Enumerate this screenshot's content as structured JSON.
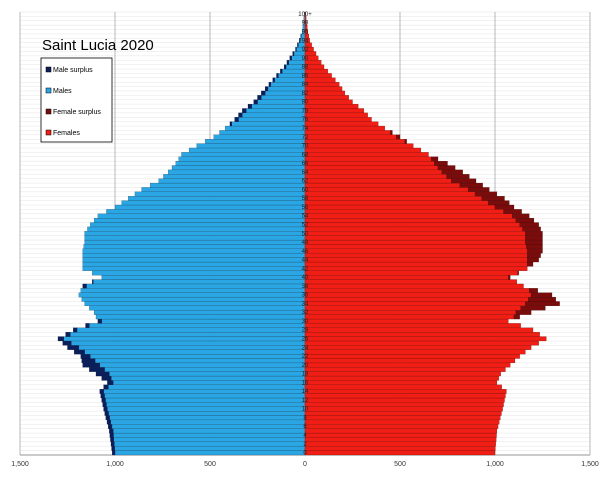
{
  "chart_data": {
    "type": "bar",
    "orientation": "horizontal",
    "title": "Saint Lucia 2020",
    "x_tick_labels": [
      "1,500",
      "1,000",
      "500",
      "0",
      "500",
      "1,000",
      "1,500"
    ],
    "x_tick_values": [
      -1500,
      -1000,
      -500,
      0,
      500,
      1000,
      1500
    ],
    "xlim": [
      -1500,
      1500
    ],
    "age_tick_labels": [
      "100+",
      "98",
      "96",
      "94",
      "92",
      "90",
      "88",
      "86",
      "84",
      "82",
      "80",
      "78",
      "76",
      "74",
      "72",
      "70",
      "68",
      "66",
      "64",
      "62",
      "60",
      "58",
      "56",
      "54",
      "52",
      "50",
      "48",
      "46",
      "44",
      "42",
      "40",
      "38",
      "36",
      "34",
      "32",
      "30",
      "28",
      "26",
      "24",
      "22",
      "20",
      "18",
      "16",
      "14",
      "12",
      "10",
      "8",
      "6",
      "4",
      "2",
      "0"
    ],
    "legend": {
      "placement": "top-left",
      "entries": [
        {
          "name": "Male surplus",
          "color": "#0b1f5c"
        },
        {
          "name": "Males",
          "color": "#2aa6e4"
        },
        {
          "name": "Female surplus",
          "color": "#7a0c0c"
        },
        {
          "name": "Females",
          "color": "#f01e14"
        }
      ]
    },
    "grid": true,
    "series_anchor_ages": [
      0,
      5,
      10,
      14,
      16,
      18,
      20,
      22,
      24,
      26,
      28,
      30,
      32,
      34,
      36,
      38,
      40,
      42,
      44,
      46,
      48,
      50,
      52,
      54,
      56,
      58,
      60,
      62,
      64,
      66,
      68,
      70,
      72,
      74,
      76,
      78,
      80,
      82,
      84,
      86,
      88,
      90,
      92,
      94,
      96,
      98,
      100
    ],
    "males_anchor": [
      1015,
      1030,
      1060,
      1080,
      1040,
      1100,
      1170,
      1180,
      1250,
      1300,
      1220,
      1090,
      1110,
      1160,
      1190,
      1170,
      1070,
      1170,
      1170,
      1170,
      1160,
      1160,
      1130,
      1090,
      1000,
      930,
      860,
      770,
      720,
      680,
      650,
      570,
      480,
      420,
      370,
      330,
      270,
      230,
      190,
      150,
      110,
      80,
      50,
      30,
      15,
      8,
      4
    ],
    "females_anchor": [
      1000,
      1010,
      1040,
      1060,
      1010,
      1030,
      1080,
      1130,
      1190,
      1270,
      1200,
      1070,
      1190,
      1340,
      1300,
      1150,
      1080,
      1170,
      1230,
      1250,
      1250,
      1250,
      1230,
      1180,
      1100,
      1050,
      970,
      900,
      830,
      750,
      650,
      570,
      500,
      420,
      350,
      310,
      250,
      210,
      180,
      140,
      100,
      70,
      45,
      25,
      15,
      8,
      4
    ]
  }
}
